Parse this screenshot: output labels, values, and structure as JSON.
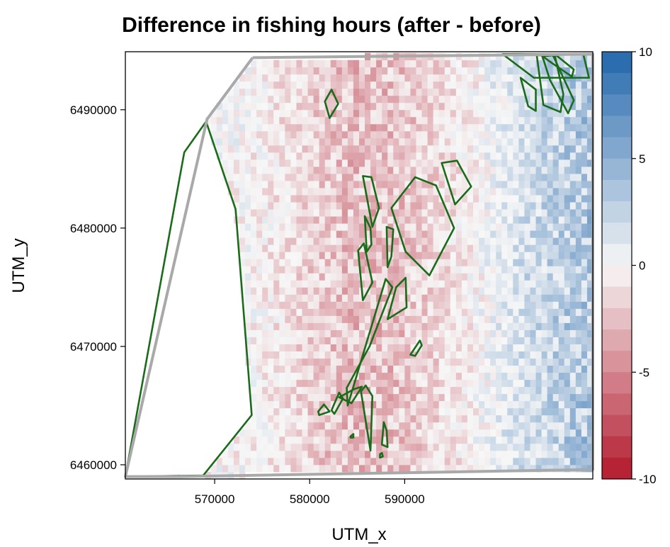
{
  "chart_data": {
    "type": "heatmap",
    "title": "Difference in fishing hours (after - before)",
    "xlabel": "UTM_x",
    "ylabel": "UTM_y",
    "xlim": [
      560600,
      609800
    ],
    "ylim": [
      6458800,
      6494900
    ],
    "x_ticks": [
      {
        "value": 570000,
        "label": "570000"
      },
      {
        "value": 580000,
        "label": "580000"
      },
      {
        "value": 590000,
        "label": "590000"
      }
    ],
    "y_ticks": [
      {
        "value": 6460000,
        "label": "6460000"
      },
      {
        "value": 6470000,
        "label": "6470000"
      },
      {
        "value": 6480000,
        "label": "6480000"
      },
      {
        "value": 6490000,
        "label": "6490000"
      }
    ],
    "colorbar": {
      "min": -10,
      "max": 10,
      "ticks": [
        {
          "value": 10,
          "label": "10"
        },
        {
          "value": 5,
          "label": "5"
        },
        {
          "value": 0,
          "label": "0"
        },
        {
          "value": -5,
          "label": "-5"
        },
        {
          "value": -10,
          "label": "-10"
        }
      ],
      "colors": {
        "negative": "#b2182b",
        "zero": "#f7f7f7",
        "positive": "#2166ac"
      }
    },
    "study_area_outline": [
      [
        574000,
        6494400
      ],
      [
        609800,
        6494700
      ],
      [
        609800,
        6459600
      ],
      [
        566000,
        6459000
      ],
      [
        560600,
        6459000
      ],
      [
        569200,
        6489200
      ]
    ],
    "protected_areas": [
      [
        [
          569100,
          6489000
        ],
        [
          566800,
          6486400
        ],
        [
          560600,
          6459000
        ],
        [
          568800,
          6459100
        ],
        [
          573900,
          6464200
        ],
        [
          572200,
          6481600
        ]
      ],
      [
        [
          582300,
          6491700
        ],
        [
          583000,
          6490500
        ],
        [
          582100,
          6489300
        ],
        [
          581600,
          6490700
        ]
      ],
      [
        [
          600300,
          6494700
        ],
        [
          608800,
          6494700
        ],
        [
          609400,
          6492700
        ],
        [
          603600,
          6492700
        ]
      ],
      [
        [
          604200,
          6494700
        ],
        [
          605800,
          6494700
        ],
        [
          607800,
          6493400
        ],
        [
          607600,
          6492800
        ],
        [
          605400,
          6494000
        ]
      ],
      [
        [
          603900,
          6494600
        ],
        [
          605800,
          6494600
        ],
        [
          606700,
          6491300
        ],
        [
          606400,
          6489800
        ],
        [
          604600,
          6490400
        ]
      ],
      [
        [
          602200,
          6492700
        ],
        [
          603800,
          6491700
        ],
        [
          603800,
          6489900
        ],
        [
          603000,
          6490300
        ]
      ],
      [
        [
          604500,
          6494500
        ],
        [
          605600,
          6494600
        ],
        [
          607800,
          6490800
        ],
        [
          607200,
          6489700
        ],
        [
          605300,
          6492500
        ]
      ],
      [
        [
          593900,
          6485500
        ],
        [
          595500,
          6485700
        ],
        [
          597000,
          6483500
        ],
        [
          595300,
          6482000
        ]
      ],
      [
        [
          591100,
          6484300
        ],
        [
          593300,
          6483600
        ],
        [
          595200,
          6480000
        ],
        [
          592600,
          6476000
        ],
        [
          590100,
          6478000
        ],
        [
          588600,
          6481700
        ]
      ],
      [
        [
          585600,
          6484400
        ],
        [
          586500,
          6484300
        ],
        [
          587300,
          6481700
        ],
        [
          586600,
          6480100
        ]
      ],
      [
        [
          585800,
          6481000
        ],
        [
          586400,
          6480000
        ],
        [
          586500,
          6478600
        ],
        [
          586000,
          6478000
        ]
      ],
      [
        [
          588100,
          6480100
        ],
        [
          588800,
          6479900
        ],
        [
          588600,
          6477600
        ],
        [
          588200,
          6476700
        ]
      ],
      [
        [
          585100,
          6478100
        ],
        [
          585700,
          6478700
        ],
        [
          586600,
          6475400
        ],
        [
          585600,
          6473900
        ]
      ],
      [
        [
          589100,
          6475000
        ],
        [
          590100,
          6475800
        ],
        [
          590200,
          6473300
        ],
        [
          588200,
          6472300
        ]
      ],
      [
        [
          588000,
          6475700
        ],
        [
          588700,
          6475000
        ],
        [
          586300,
          6470000
        ],
        [
          583900,
          6466500
        ],
        [
          584000,
          6465000
        ]
      ],
      [
        [
          591600,
          6470500
        ],
        [
          591800,
          6470100
        ],
        [
          591100,
          6469200
        ],
        [
          590600,
          6469300
        ]
      ],
      [
        [
          584700,
          6466400
        ],
        [
          585500,
          6466600
        ],
        [
          584400,
          6465200
        ],
        [
          583100,
          6465700
        ]
      ],
      [
        [
          583100,
          6466100
        ],
        [
          583500,
          6465600
        ],
        [
          582600,
          6464300
        ],
        [
          582300,
          6464600
        ]
      ],
      [
        [
          581500,
          6465100
        ],
        [
          582100,
          6464500
        ],
        [
          581000,
          6464200
        ],
        [
          580900,
          6464500
        ]
      ],
      [
        [
          584300,
          6462400
        ],
        [
          584600,
          6462600
        ],
        [
          584600,
          6462300
        ],
        [
          584300,
          6462300
        ]
      ],
      [
        [
          585400,
          6466200
        ],
        [
          585900,
          6466700
        ],
        [
          586600,
          6465800
        ],
        [
          586400,
          6461200
        ]
      ],
      [
        [
          587600,
          6461700
        ],
        [
          587800,
          6463600
        ],
        [
          588100,
          6462900
        ],
        [
          588200,
          6461500
        ]
      ],
      [
        [
          587400,
          6460900
        ],
        [
          587600,
          6461000
        ],
        [
          587700,
          6460700
        ],
        [
          587400,
          6460600
        ]
      ]
    ]
  }
}
